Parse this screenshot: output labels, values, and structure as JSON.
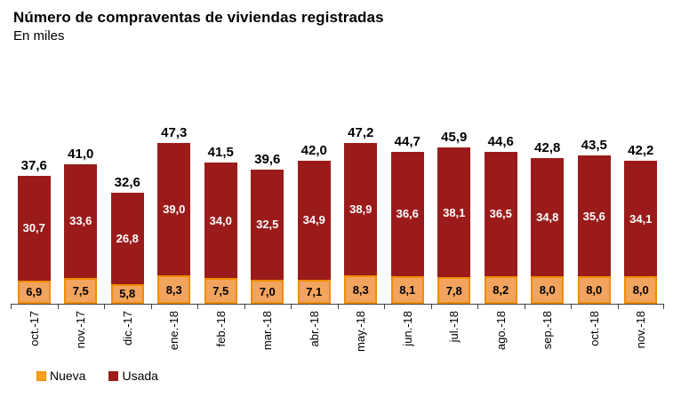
{
  "chart_data": {
    "type": "bar",
    "stacked": true,
    "title": "Número de compraventas de viviendas registradas",
    "subtitle": "En miles",
    "categories": [
      "oct.-17",
      "nov.-17",
      "dic.-17",
      "ene.-18",
      "feb.-18",
      "mar.-18",
      "abr.-18",
      "may.-18",
      "jun.-18",
      "jul.-18",
      "ago.-18",
      "sep.-18",
      "oct.-18",
      "nov.-18"
    ],
    "series": [
      {
        "name": "Nueva",
        "values": [
          6.9,
          7.5,
          5.8,
          8.3,
          7.5,
          7.0,
          7.1,
          8.3,
          8.1,
          7.8,
          8.2,
          8.0,
          8.0,
          8.0
        ],
        "fill": "#F2A45E",
        "border": "#F08C00",
        "legend_color": "#F5A11E",
        "label_color": "#000000"
      },
      {
        "name": "Usada",
        "values": [
          30.7,
          33.6,
          26.8,
          39.0,
          34.0,
          32.5,
          34.9,
          38.9,
          36.6,
          38.1,
          36.5,
          34.8,
          35.6,
          34.1
        ],
        "fill": "#9B1B1B",
        "border": "#9B1B1B",
        "legend_color": "#9B1B1B",
        "label_color": "#FFFFFF"
      }
    ],
    "totals": [
      37.6,
      41.0,
      32.6,
      47.3,
      41.5,
      39.6,
      42.0,
      47.2,
      44.7,
      45.9,
      44.6,
      42.8,
      43.5,
      42.2
    ],
    "decimal_separator": ",",
    "legend_position": "bottom-left",
    "grid": false,
    "axis_color": "#404040",
    "ylim": [
      0,
      68
    ]
  }
}
